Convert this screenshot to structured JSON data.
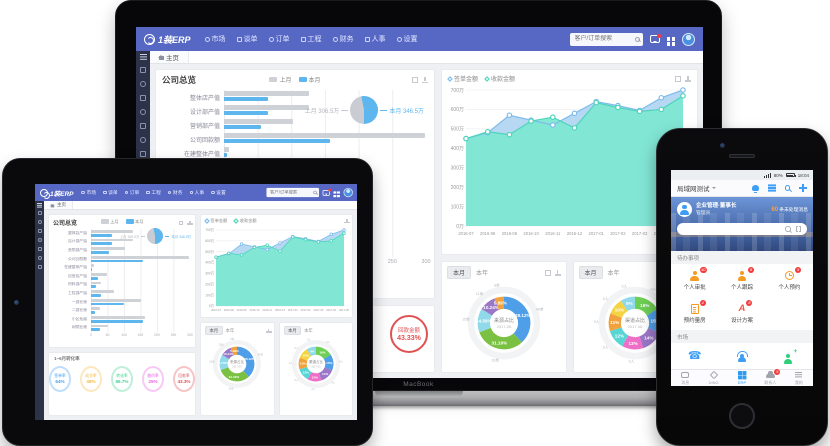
{
  "scene": {
    "laptop_label": "MacBook"
  },
  "colors": {
    "navbar": "#5668c4",
    "sidebar": "#2c3247",
    "accent_blue": "#5db6ed",
    "bar_gray": "#ced1d6",
    "phone_accent": "#3e9df5",
    "badge_red": "#f23c3c",
    "gauge_red": "#e05252"
  },
  "erp": {
    "logo": "1装ERP",
    "menu": [
      "市场",
      "谈单",
      "订单",
      "工程",
      "财务",
      "人事",
      "设置"
    ],
    "nav_icons": [
      "message",
      "apps",
      "avatar"
    ],
    "sidebar_icons": [
      "menu",
      "message",
      "org",
      "customer",
      "staff",
      "orders",
      "search",
      "settings"
    ],
    "search_placeholder": "客户/订单搜索",
    "tab_home": "主页",
    "overview_title": "公司总览",
    "tab_month": "本月",
    "tab_year": "本年"
  },
  "phone": {
    "status": {
      "battery": "80%",
      "time": "18:04"
    },
    "header": {
      "title": "局域网测试"
    },
    "banner": {
      "org": "企业管理·董事长",
      "role": "管理员",
      "unread_num": "60",
      "unread_text": "条未处理消息"
    },
    "sections": {
      "todo": "待办事项",
      "market": "市场"
    },
    "todo_items": [
      {
        "label": "个人审批",
        "badge": "40",
        "icon": "person-approve"
      },
      {
        "label": "个人跟踪",
        "badge": "8",
        "icon": "person-follow"
      },
      {
        "label": "个人预约",
        "badge": "9",
        "icon": "clock"
      },
      {
        "label": "预约量房",
        "badge": "4",
        "icon": "doc"
      },
      {
        "label": "设计方案",
        "badge": "8",
        "icon": "design"
      }
    ],
    "market_icons": [
      {
        "icon": "telephone"
      },
      {
        "icon": "customer-service"
      },
      {
        "icon": "add-person"
      }
    ],
    "tabbar": [
      {
        "label": "消息",
        "icon": "chat"
      },
      {
        "label": "DING",
        "icon": "ding"
      },
      {
        "label": "ERP",
        "icon": "grid",
        "active": true
      },
      {
        "label": "联系人",
        "icon": "contacts",
        "badge": "5"
      },
      {
        "label": "我的",
        "icon": "mine"
      }
    ]
  },
  "chart_data": [
    {
      "id": "company_bar",
      "type": "bar",
      "orientation": "horizontal",
      "title": "公司总览",
      "categories": [
        "整体店产值",
        "设计部产值",
        "营销部产值",
        "公司回款额",
        "在建整体产值",
        "自营店产值",
        "材料部产值",
        "工程部产值",
        "一部业绩",
        "二部业绩",
        "小区拓展",
        "网销业绩"
      ],
      "series": [
        {
          "name": "上月",
          "color": "#ced1d6",
          "values": [
            127,
            127,
            102,
            298,
            8,
            48,
            30,
            70,
            150,
            28,
            165,
            50
          ]
        },
        {
          "name": "本月",
          "color": "#5db6ed",
          "values": [
            65,
            65,
            55,
            157,
            4,
            22,
            14,
            30,
            100,
            12,
            158,
            28
          ]
        }
      ],
      "xlim": [
        0,
        300
      ],
      "xticks": [
        0,
        50,
        100,
        150,
        200,
        250,
        300
      ],
      "grid": true
    },
    {
      "id": "month_pie",
      "type": "pie",
      "style": "plain",
      "labels": [
        "上月",
        "本月"
      ],
      "values": [
        306.5,
        346.5
      ],
      "unit": "万",
      "colors": [
        "#c9ccd2",
        "#5db6ed"
      ]
    },
    {
      "id": "amount_trend",
      "type": "area",
      "x": [
        "2016-07",
        "2016-08",
        "2016-09",
        "2016-10",
        "2016-11",
        "2016-12",
        "2017-01",
        "2017-02",
        "2017-03",
        "2017-04",
        "2017-05"
      ],
      "series": [
        {
          "name": "签单金额",
          "color": "#7fbcec",
          "fill": "#b3d6f2",
          "values": [
            450,
            480,
            570,
            545,
            520,
            580,
            640,
            620,
            595,
            660,
            700
          ]
        },
        {
          "name": "收款金额",
          "color": "#4ed4ba",
          "fill": "#7ee7d3",
          "values": [
            450,
            485,
            470,
            540,
            560,
            505,
            635,
            610,
            590,
            600,
            670
          ]
        }
      ],
      "ylim": [
        0,
        700
      ],
      "yticks": [
        "0万",
        "100万",
        "200万",
        "300万",
        "400万",
        "500万",
        "600万",
        "700万"
      ],
      "legend_position": "top-left",
      "grid": true
    },
    {
      "id": "source_donut",
      "type": "pie",
      "style": "donut",
      "title": "来源占比",
      "subtitle": "2017-06",
      "labels": [
        "朋友介绍",
        "电话营销",
        "网络推广",
        "小区拓展",
        "门店接待"
      ],
      "values": [
        38.12,
        31.19,
        14.56,
        10.24,
        5.89
      ],
      "colors": [
        "#4f9ee8",
        "#7ac143",
        "#8fd9ea",
        "#9b77c8",
        "#f2a23c"
      ],
      "outer_labels": [
        "40单",
        "33单",
        "15单",
        "11单",
        "6单"
      ]
    },
    {
      "id": "channel_donut",
      "type": "pie",
      "style": "donut",
      "title": "渠道占比",
      "subtitle": "2017-06",
      "labels": [
        "展会",
        "电话",
        "网络",
        "转介绍",
        "小区",
        "门店",
        "广告",
        "活动"
      ],
      "values": [
        16,
        15,
        14,
        13,
        12,
        11,
        10,
        9
      ],
      "colors": [
        "#6fcf55",
        "#4f9ee8",
        "#9b77c8",
        "#ef6fc8",
        "#58d6d6",
        "#f2a23c",
        "#f5d442",
        "#8fd9ea"
      ],
      "outer_labels": [
        "0人",
        "0人",
        "0人",
        "0人",
        "0人",
        "0人",
        "0人",
        "0人"
      ]
    },
    {
      "id": "payback_gauge",
      "type": "gauge",
      "label": "回款金额",
      "value": "43.33%",
      "color": "#e05252"
    },
    {
      "id": "conversion_rings",
      "type": "rings",
      "title": "1~6月转化率",
      "items": [
        {
          "label": "签单率",
          "value": "64%",
          "color": "#3e9df5"
        },
        {
          "label": "成交率",
          "value": "38%",
          "color": "#f5b83e"
        },
        {
          "label": "转化率",
          "value": "56.7%",
          "color": "#3ecf8e"
        },
        {
          "label": "邀约率",
          "value": "25%",
          "color": "#e85ce0"
        },
        {
          "label": "回款率",
          "value": "43.3%",
          "color": "#e05252"
        }
      ]
    }
  ]
}
